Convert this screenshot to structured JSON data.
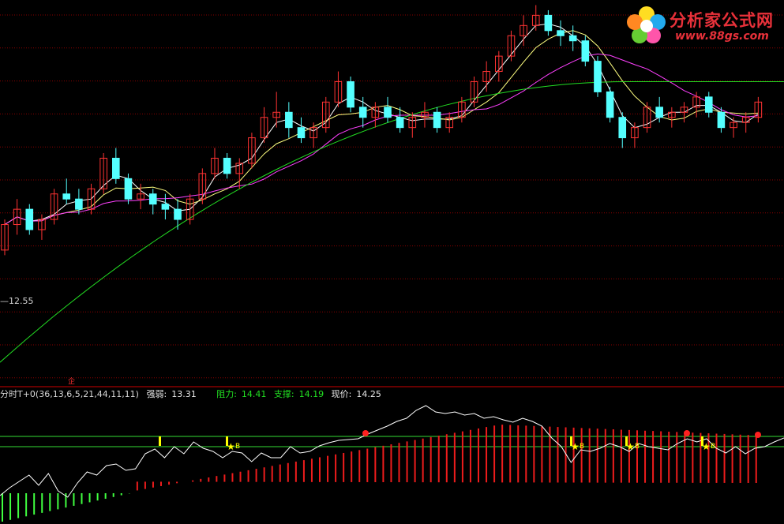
{
  "watermark": {
    "cn_text": "分析家公式网",
    "url": "www.88gs.com"
  },
  "main_panel": {
    "low_label": "12.55",
    "marker_glyph": "企"
  },
  "indicator": {
    "name": "分时T+0(36,13,6,5,21,44,11,11)",
    "strength_label": "强弱:",
    "strength_value": "13.31",
    "resistance_label": "阻力:",
    "resistance_value": "14.41",
    "support_label": "支撑:",
    "support_value": "14.19",
    "price_label": "现价:",
    "price_value": "14.25"
  },
  "colors": {
    "background": "#000000",
    "up_candle": "#ff3333",
    "down_candle": "#54ffff",
    "ma_short": "#ffffff",
    "ma_mid": "#ffff80",
    "ma_long": "#ff40ff",
    "ma_very_long": "#22dd22",
    "grid": "#8b0000",
    "hist_pos": "#ee1c1c",
    "hist_neg": "#40ff40",
    "signal_line": "#ffffff",
    "level_line": "#33dd33",
    "b_marker": "#ffff00",
    "s_marker": "#ff2020"
  },
  "chart_data": {
    "type": "candlestick",
    "title": "",
    "price_range": [
      10.0,
      17.5
    ],
    "candles": [
      [
        12.6,
        13.2,
        12.5,
        13.1
      ],
      [
        13.1,
        13.6,
        12.9,
        13.4
      ],
      [
        13.4,
        13.5,
        12.9,
        13.0
      ],
      [
        13.0,
        13.3,
        12.8,
        13.2
      ],
      [
        13.2,
        13.8,
        13.1,
        13.7
      ],
      [
        13.7,
        14.0,
        13.5,
        13.6
      ],
      [
        13.6,
        13.8,
        13.3,
        13.4
      ],
      [
        13.4,
        13.9,
        13.3,
        13.8
      ],
      [
        13.8,
        14.5,
        13.7,
        14.4
      ],
      [
        14.4,
        14.6,
        13.9,
        14.0
      ],
      [
        14.0,
        14.1,
        13.5,
        13.6
      ],
      [
        13.6,
        13.9,
        13.4,
        13.7
      ],
      [
        13.7,
        13.8,
        13.3,
        13.5
      ],
      [
        13.5,
        13.7,
        13.2,
        13.4
      ],
      [
        13.4,
        13.6,
        13.0,
        13.2
      ],
      [
        13.2,
        13.7,
        13.1,
        13.6
      ],
      [
        13.6,
        14.2,
        13.5,
        14.1
      ],
      [
        14.1,
        14.6,
        14.0,
        14.4
      ],
      [
        14.4,
        14.5,
        14.0,
        14.1
      ],
      [
        14.1,
        14.4,
        13.8,
        14.3
      ],
      [
        14.3,
        14.9,
        14.2,
        14.8
      ],
      [
        14.8,
        15.4,
        14.7,
        15.2
      ],
      [
        15.2,
        15.7,
        15.0,
        15.3
      ],
      [
        15.3,
        15.5,
        14.8,
        15.0
      ],
      [
        15.0,
        15.2,
        14.7,
        14.8
      ],
      [
        14.8,
        15.1,
        14.6,
        15.0
      ],
      [
        15.0,
        15.6,
        14.9,
        15.5
      ],
      [
        15.5,
        16.1,
        15.4,
        15.9
      ],
      [
        15.9,
        16.0,
        15.3,
        15.4
      ],
      [
        15.4,
        15.6,
        15.0,
        15.2
      ],
      [
        15.2,
        15.5,
        15.0,
        15.4
      ],
      [
        15.4,
        15.6,
        15.1,
        15.2
      ],
      [
        15.2,
        15.4,
        14.9,
        15.0
      ],
      [
        15.0,
        15.3,
        14.8,
        15.2
      ],
      [
        15.2,
        15.5,
        15.0,
        15.3
      ],
      [
        15.3,
        15.4,
        14.9,
        15.0
      ],
      [
        15.0,
        15.3,
        14.9,
        15.2
      ],
      [
        15.2,
        15.6,
        15.1,
        15.5
      ],
      [
        15.5,
        16.0,
        15.4,
        15.9
      ],
      [
        15.9,
        16.3,
        15.7,
        16.1
      ],
      [
        16.1,
        16.5,
        15.9,
        16.4
      ],
      [
        16.4,
        16.9,
        16.3,
        16.8
      ],
      [
        16.8,
        17.2,
        16.6,
        17.0
      ],
      [
        17.0,
        17.4,
        16.9,
        17.2
      ],
      [
        17.2,
        17.3,
        16.8,
        16.9
      ],
      [
        16.9,
        17.1,
        16.6,
        16.8
      ],
      [
        16.8,
        17.0,
        16.5,
        16.7
      ],
      [
        16.7,
        16.8,
        16.2,
        16.3
      ],
      [
        16.3,
        16.4,
        15.6,
        15.7
      ],
      [
        15.7,
        15.8,
        15.1,
        15.2
      ],
      [
        15.2,
        15.3,
        14.6,
        14.8
      ],
      [
        14.8,
        15.1,
        14.6,
        15.0
      ],
      [
        15.0,
        15.5,
        14.9,
        15.4
      ],
      [
        15.4,
        15.6,
        15.1,
        15.2
      ],
      [
        15.2,
        15.4,
        15.0,
        15.3
      ],
      [
        15.3,
        15.5,
        15.1,
        15.4
      ],
      [
        15.4,
        15.7,
        15.2,
        15.6
      ],
      [
        15.6,
        15.7,
        15.2,
        15.3
      ],
      [
        15.3,
        15.4,
        14.9,
        15.0
      ],
      [
        15.0,
        15.2,
        14.8,
        15.1
      ],
      [
        15.1,
        15.3,
        14.9,
        15.2
      ],
      [
        15.2,
        15.6,
        15.1,
        15.5
      ]
    ],
    "indicator_levels": {
      "resistance": 14.41,
      "support": 14.19
    },
    "signal_markers": [
      "B",
      "B",
      "B",
      "B"
    ]
  }
}
